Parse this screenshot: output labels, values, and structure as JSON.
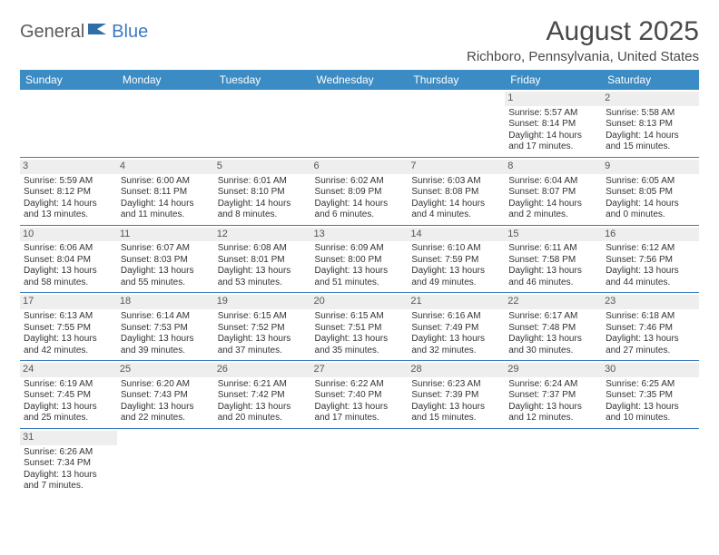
{
  "logo": {
    "part1": "General",
    "part2": "Blue"
  },
  "title": "August 2025",
  "location": "Richboro, Pennsylvania, United States",
  "colors": {
    "header_bg": "#3b8bc4",
    "header_text": "#ffffff",
    "rule": "#3b7bbf",
    "daynum_bg": "#eeeeee",
    "text": "#333333",
    "logo_gray": "#5a5a5a",
    "logo_blue": "#3b7bbf"
  },
  "typography": {
    "title_fontsize": 30,
    "location_fontsize": 15,
    "th_fontsize": 12,
    "cell_fontsize": 10
  },
  "day_headers": [
    "Sunday",
    "Monday",
    "Tuesday",
    "Wednesday",
    "Thursday",
    "Friday",
    "Saturday"
  ],
  "weeks": [
    [
      null,
      null,
      null,
      null,
      null,
      {
        "n": "1",
        "sr": "Sunrise: 5:57 AM",
        "ss": "Sunset: 8:14 PM",
        "d1": "Daylight: 14 hours",
        "d2": "and 17 minutes."
      },
      {
        "n": "2",
        "sr": "Sunrise: 5:58 AM",
        "ss": "Sunset: 8:13 PM",
        "d1": "Daylight: 14 hours",
        "d2": "and 15 minutes."
      }
    ],
    [
      {
        "n": "3",
        "sr": "Sunrise: 5:59 AM",
        "ss": "Sunset: 8:12 PM",
        "d1": "Daylight: 14 hours",
        "d2": "and 13 minutes."
      },
      {
        "n": "4",
        "sr": "Sunrise: 6:00 AM",
        "ss": "Sunset: 8:11 PM",
        "d1": "Daylight: 14 hours",
        "d2": "and 11 minutes."
      },
      {
        "n": "5",
        "sr": "Sunrise: 6:01 AM",
        "ss": "Sunset: 8:10 PM",
        "d1": "Daylight: 14 hours",
        "d2": "and 8 minutes."
      },
      {
        "n": "6",
        "sr": "Sunrise: 6:02 AM",
        "ss": "Sunset: 8:09 PM",
        "d1": "Daylight: 14 hours",
        "d2": "and 6 minutes."
      },
      {
        "n": "7",
        "sr": "Sunrise: 6:03 AM",
        "ss": "Sunset: 8:08 PM",
        "d1": "Daylight: 14 hours",
        "d2": "and 4 minutes."
      },
      {
        "n": "8",
        "sr": "Sunrise: 6:04 AM",
        "ss": "Sunset: 8:07 PM",
        "d1": "Daylight: 14 hours",
        "d2": "and 2 minutes."
      },
      {
        "n": "9",
        "sr": "Sunrise: 6:05 AM",
        "ss": "Sunset: 8:05 PM",
        "d1": "Daylight: 14 hours",
        "d2": "and 0 minutes."
      }
    ],
    [
      {
        "n": "10",
        "sr": "Sunrise: 6:06 AM",
        "ss": "Sunset: 8:04 PM",
        "d1": "Daylight: 13 hours",
        "d2": "and 58 minutes."
      },
      {
        "n": "11",
        "sr": "Sunrise: 6:07 AM",
        "ss": "Sunset: 8:03 PM",
        "d1": "Daylight: 13 hours",
        "d2": "and 55 minutes."
      },
      {
        "n": "12",
        "sr": "Sunrise: 6:08 AM",
        "ss": "Sunset: 8:01 PM",
        "d1": "Daylight: 13 hours",
        "d2": "and 53 minutes."
      },
      {
        "n": "13",
        "sr": "Sunrise: 6:09 AM",
        "ss": "Sunset: 8:00 PM",
        "d1": "Daylight: 13 hours",
        "d2": "and 51 minutes."
      },
      {
        "n": "14",
        "sr": "Sunrise: 6:10 AM",
        "ss": "Sunset: 7:59 PM",
        "d1": "Daylight: 13 hours",
        "d2": "and 49 minutes."
      },
      {
        "n": "15",
        "sr": "Sunrise: 6:11 AM",
        "ss": "Sunset: 7:58 PM",
        "d1": "Daylight: 13 hours",
        "d2": "and 46 minutes."
      },
      {
        "n": "16",
        "sr": "Sunrise: 6:12 AM",
        "ss": "Sunset: 7:56 PM",
        "d1": "Daylight: 13 hours",
        "d2": "and 44 minutes."
      }
    ],
    [
      {
        "n": "17",
        "sr": "Sunrise: 6:13 AM",
        "ss": "Sunset: 7:55 PM",
        "d1": "Daylight: 13 hours",
        "d2": "and 42 minutes."
      },
      {
        "n": "18",
        "sr": "Sunrise: 6:14 AM",
        "ss": "Sunset: 7:53 PM",
        "d1": "Daylight: 13 hours",
        "d2": "and 39 minutes."
      },
      {
        "n": "19",
        "sr": "Sunrise: 6:15 AM",
        "ss": "Sunset: 7:52 PM",
        "d1": "Daylight: 13 hours",
        "d2": "and 37 minutes."
      },
      {
        "n": "20",
        "sr": "Sunrise: 6:15 AM",
        "ss": "Sunset: 7:51 PM",
        "d1": "Daylight: 13 hours",
        "d2": "and 35 minutes."
      },
      {
        "n": "21",
        "sr": "Sunrise: 6:16 AM",
        "ss": "Sunset: 7:49 PM",
        "d1": "Daylight: 13 hours",
        "d2": "and 32 minutes."
      },
      {
        "n": "22",
        "sr": "Sunrise: 6:17 AM",
        "ss": "Sunset: 7:48 PM",
        "d1": "Daylight: 13 hours",
        "d2": "and 30 minutes."
      },
      {
        "n": "23",
        "sr": "Sunrise: 6:18 AM",
        "ss": "Sunset: 7:46 PM",
        "d1": "Daylight: 13 hours",
        "d2": "and 27 minutes."
      }
    ],
    [
      {
        "n": "24",
        "sr": "Sunrise: 6:19 AM",
        "ss": "Sunset: 7:45 PM",
        "d1": "Daylight: 13 hours",
        "d2": "and 25 minutes."
      },
      {
        "n": "25",
        "sr": "Sunrise: 6:20 AM",
        "ss": "Sunset: 7:43 PM",
        "d1": "Daylight: 13 hours",
        "d2": "and 22 minutes."
      },
      {
        "n": "26",
        "sr": "Sunrise: 6:21 AM",
        "ss": "Sunset: 7:42 PM",
        "d1": "Daylight: 13 hours",
        "d2": "and 20 minutes."
      },
      {
        "n": "27",
        "sr": "Sunrise: 6:22 AM",
        "ss": "Sunset: 7:40 PM",
        "d1": "Daylight: 13 hours",
        "d2": "and 17 minutes."
      },
      {
        "n": "28",
        "sr": "Sunrise: 6:23 AM",
        "ss": "Sunset: 7:39 PM",
        "d1": "Daylight: 13 hours",
        "d2": "and 15 minutes."
      },
      {
        "n": "29",
        "sr": "Sunrise: 6:24 AM",
        "ss": "Sunset: 7:37 PM",
        "d1": "Daylight: 13 hours",
        "d2": "and 12 minutes."
      },
      {
        "n": "30",
        "sr": "Sunrise: 6:25 AM",
        "ss": "Sunset: 7:35 PM",
        "d1": "Daylight: 13 hours",
        "d2": "and 10 minutes."
      }
    ],
    [
      {
        "n": "31",
        "sr": "Sunrise: 6:26 AM",
        "ss": "Sunset: 7:34 PM",
        "d1": "Daylight: 13 hours",
        "d2": "and 7 minutes."
      },
      null,
      null,
      null,
      null,
      null,
      null
    ]
  ]
}
